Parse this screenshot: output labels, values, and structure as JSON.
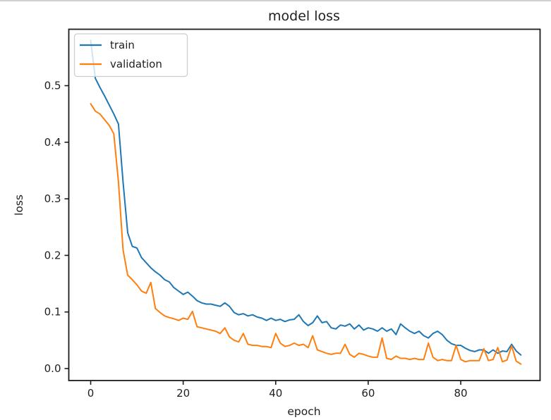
{
  "figure": {
    "background": "#ffffff",
    "top_edge_color": "#cdd1d6",
    "spine_color": "#1c1c1c",
    "text_color": "#1f1f1f"
  },
  "chart_data": {
    "type": "line",
    "title": "model loss",
    "xlabel": "epoch",
    "ylabel": "loss",
    "x_ticks": [
      0,
      20,
      40,
      60,
      80
    ],
    "y_ticks": [
      0.0,
      0.1,
      0.2,
      0.3,
      0.4,
      0.5
    ],
    "xlim": [
      -4.73,
      97.15
    ],
    "ylim": [
      -0.0212,
      0.5997
    ],
    "grid": false,
    "x_is_epoch_index": true,
    "epoch_count": 94,
    "legend": {
      "position": "upper left",
      "frame_fill": "#ffffff",
      "frame_alpha": 0.8,
      "frame_border": "#cccccc",
      "entries": [
        {
          "label": "train",
          "color": "#1f77b4"
        },
        {
          "label": "validation",
          "color": "#ff7f0e"
        }
      ]
    },
    "series": [
      {
        "name": "train",
        "color": "#1f77b4",
        "values": [
          0.58,
          0.513,
          0.497,
          0.482,
          0.466,
          0.45,
          0.432,
          0.33,
          0.24,
          0.216,
          0.213,
          0.196,
          0.187,
          0.178,
          0.171,
          0.165,
          0.157,
          0.153,
          0.143,
          0.137,
          0.131,
          0.135,
          0.128,
          0.12,
          0.116,
          0.114,
          0.114,
          0.112,
          0.11,
          0.116,
          0.11,
          0.099,
          0.095,
          0.097,
          0.093,
          0.095,
          0.091,
          0.089,
          0.085,
          0.089,
          0.085,
          0.087,
          0.083,
          0.086,
          0.087,
          0.095,
          0.083,
          0.076,
          0.081,
          0.093,
          0.081,
          0.083,
          0.072,
          0.07,
          0.077,
          0.075,
          0.079,
          0.07,
          0.077,
          0.068,
          0.072,
          0.07,
          0.066,
          0.072,
          0.066,
          0.07,
          0.06,
          0.079,
          0.072,
          0.066,
          0.062,
          0.066,
          0.058,
          0.054,
          0.062,
          0.066,
          0.06,
          0.05,
          0.044,
          0.041,
          0.041,
          0.036,
          0.032,
          0.03,
          0.033,
          0.033,
          0.027,
          0.033,
          0.027,
          0.031,
          0.03,
          0.043,
          0.031,
          0.024
        ]
      },
      {
        "name": "validation",
        "color": "#ff7f0e",
        "values": [
          0.468,
          0.455,
          0.45,
          0.44,
          0.43,
          0.415,
          0.33,
          0.21,
          0.165,
          0.157,
          0.148,
          0.137,
          0.133,
          0.152,
          0.106,
          0.099,
          0.093,
          0.09,
          0.088,
          0.085,
          0.089,
          0.087,
          0.101,
          0.074,
          0.072,
          0.07,
          0.068,
          0.066,
          0.062,
          0.072,
          0.056,
          0.05,
          0.047,
          0.062,
          0.043,
          0.041,
          0.041,
          0.039,
          0.039,
          0.037,
          0.062,
          0.045,
          0.039,
          0.041,
          0.045,
          0.041,
          0.043,
          0.037,
          0.058,
          0.033,
          0.03,
          0.027,
          0.025,
          0.027,
          0.027,
          0.043,
          0.025,
          0.02,
          0.027,
          0.025,
          0.022,
          0.02,
          0.02,
          0.054,
          0.018,
          0.016,
          0.022,
          0.018,
          0.018,
          0.016,
          0.018,
          0.016,
          0.016,
          0.045,
          0.02,
          0.014,
          0.016,
          0.014,
          0.014,
          0.041,
          0.016,
          0.012,
          0.014,
          0.014,
          0.014,
          0.035,
          0.014,
          0.016,
          0.037,
          0.012,
          0.015,
          0.04,
          0.013,
          0.008
        ]
      }
    ]
  }
}
